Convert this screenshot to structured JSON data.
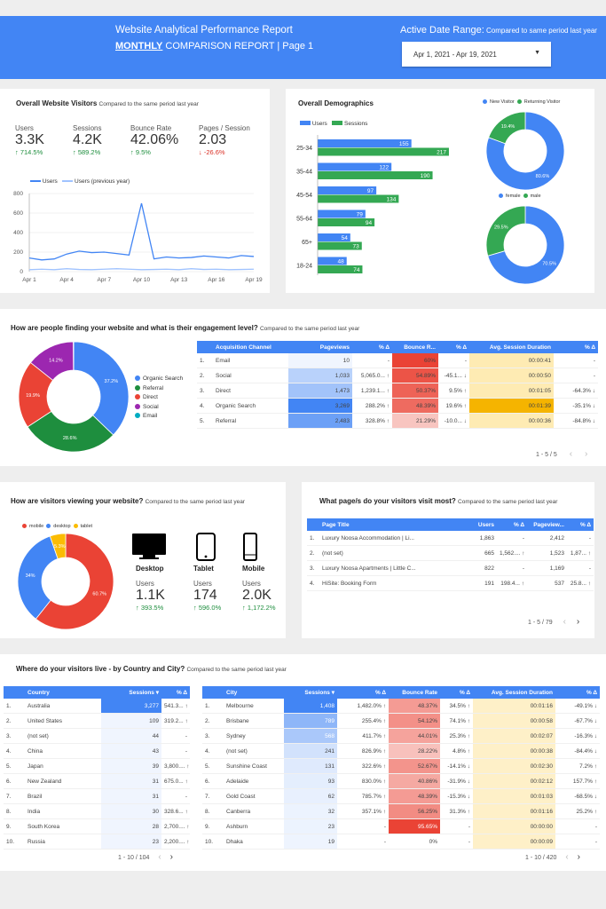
{
  "header": {
    "title": "Website Analytical Performance Report",
    "subtitle_bold": "MONTHLY",
    "subtitle_rest": " COMPARISON REPORT |  Page 1",
    "date_label": "Active Date Range:",
    "date_label_note": " Compared to same period last year",
    "date_value": "Apr 1, 2021 - Apr 19, 2021"
  },
  "visitors": {
    "title": "Overall Website Visitors",
    "note": "Compared to the same period last year",
    "metrics": [
      {
        "label": "Users",
        "value": "3.3K",
        "change": "714.5%",
        "dir": "up"
      },
      {
        "label": "Sessions",
        "value": "4.2K",
        "change": "589.2%",
        "dir": "up"
      },
      {
        "label": "Bounce Rate",
        "value": "42.06%",
        "change": "9.5%",
        "dir": "up"
      },
      {
        "label": "Pages / Session",
        "value": "2.03",
        "change": "-26.6%",
        "dir": "down"
      }
    ]
  },
  "demographics": {
    "title": "Overall Demographics"
  },
  "engagement": {
    "title": "How are people finding your website and what is their engagement level?",
    "note": "Compared to the same period last year",
    "headers": [
      "Acquisition Channel",
      "Pageviews",
      "% Δ",
      "Bounce R...",
      "% Δ",
      "Avg. Session Duration",
      "% Δ"
    ],
    "rows": [
      [
        "1.",
        "Email",
        "10",
        "-",
        "60%",
        "-",
        "00:00:41",
        "-"
      ],
      [
        "2.",
        "Social",
        "1,033",
        "5,065.0...",
        "54.89%",
        "-45.1...",
        "00:00:50",
        "-"
      ],
      [
        "3.",
        "Direct",
        "1,473",
        "1,239.1...",
        "50.37%",
        "9.5%",
        "00:01:05",
        "-64.3%"
      ],
      [
        "4.",
        "Organic Search",
        "3,269",
        "288.2%",
        "48.39%",
        "19.6%",
        "00:01:39",
        "-35.1%"
      ],
      [
        "5.",
        "Referral",
        "2,483",
        "328.8%",
        "21.29%",
        "-10.0...",
        "00:00:36",
        "-84.8%"
      ]
    ],
    "pager": "1 - 5 / 5"
  },
  "devices": {
    "title": "How are visitors viewing your website?",
    "note": "Compared to the same period last year",
    "items": [
      {
        "label": "Desktop",
        "metric": "Users",
        "value": "1.1K",
        "change": "393.5%"
      },
      {
        "label": "Tablet",
        "metric": "Users",
        "value": "174",
        "change": "596.0%"
      },
      {
        "label": "Mobile",
        "metric": "Users",
        "value": "2.0K",
        "change": "1,172.2%"
      }
    ]
  },
  "pages": {
    "title": "What page/s do your visitors visit most?",
    "note": "Compared to the same period last year",
    "headers": [
      "Page Title",
      "Users",
      "% Δ",
      "Pageview...",
      "% Δ"
    ],
    "rows": [
      [
        "1.",
        "Luxury Noosa Accommodation | Li...",
        "1,863",
        "-",
        "2,412",
        "-"
      ],
      [
        "2.",
        "(not set)",
        "665",
        "1,562....",
        "1,523",
        "1,87..."
      ],
      [
        "3.",
        "Luxury Noosa Apartments | Little C...",
        "822",
        "-",
        "1,169",
        "-"
      ],
      [
        "4.",
        "HiSite: Booking Form",
        "191",
        "198.4...",
        "537",
        "25.8..."
      ]
    ],
    "pager": "1 - 5 / 79"
  },
  "geo": {
    "title": "Where do your visitors live - by Country and City?",
    "note": "Compared to the same period last year",
    "country_headers": [
      "Country",
      "Sessions ▾",
      "% Δ"
    ],
    "country_rows": [
      [
        "1.",
        "Australia",
        "3,277",
        "541.3..."
      ],
      [
        "2.",
        "United States",
        "109",
        "319.2..."
      ],
      [
        "3.",
        "(not set)",
        "44",
        "-"
      ],
      [
        "4.",
        "China",
        "43",
        "-"
      ],
      [
        "5.",
        "Japan",
        "39",
        "3,800...."
      ],
      [
        "6.",
        "New Zealand",
        "31",
        "675.0..."
      ],
      [
        "7.",
        "Brazil",
        "31",
        "-"
      ],
      [
        "8.",
        "India",
        "30",
        "328.6..."
      ],
      [
        "9.",
        "South Korea",
        "28",
        "2,700...."
      ],
      [
        "10.",
        "Russia",
        "23",
        "2,200...."
      ]
    ],
    "country_pager": "1 - 10 / 104",
    "city_headers": [
      "City",
      "Sessions ▾",
      "% Δ",
      "Bounce Rate",
      "% Δ",
      "Avg. Session Duration",
      "% Δ"
    ],
    "city_rows": [
      [
        "1.",
        "Melbourne",
        "1,408",
        "1,482.0%",
        "48.37%",
        "34.5%",
        "00:01:16",
        "-49.1%"
      ],
      [
        "2.",
        "Brisbane",
        "789",
        "255.4%",
        "54.12%",
        "74.1%",
        "00:00:58",
        "-67.7%"
      ],
      [
        "3.",
        "Sydney",
        "568",
        "411.7%",
        "44.01%",
        "25.3%",
        "00:02:07",
        "-16.3%"
      ],
      [
        "4.",
        "(not set)",
        "241",
        "826.9%",
        "28.22%",
        "4.8%",
        "00:00:38",
        "-84.4%"
      ],
      [
        "5.",
        "Sunshine Coast",
        "131",
        "322.6%",
        "52.67%",
        "-14.1%",
        "00:02:30",
        "7.2%"
      ],
      [
        "6.",
        "Adelaide",
        "93",
        "830.0%",
        "40.86%",
        "-31.9%",
        "00:02:12",
        "157.7%"
      ],
      [
        "7.",
        "Gold Coast",
        "62",
        "785.7%",
        "48.39%",
        "-15.3%",
        "00:01:03",
        "-68.5%"
      ],
      [
        "8.",
        "Canberra",
        "32",
        "357.1%",
        "56.25%",
        "31.3%",
        "00:01:16",
        "25.2%"
      ],
      [
        "9.",
        "Ashburn",
        "23",
        "-",
        "95.65%",
        "-",
        "00:00:00",
        "-"
      ],
      [
        "10.",
        "Dhaka",
        "19",
        "-",
        "0%",
        "-",
        "00:00:09",
        "-"
      ]
    ],
    "city_pager": "1 - 10 / 420"
  },
  "chart_data": [
    {
      "type": "line",
      "x": [
        "Apr 1",
        "Apr 2",
        "Apr 3",
        "Apr 4",
        "Apr 5",
        "Apr 6",
        "Apr 7",
        "Apr 8",
        "Apr 9",
        "Apr 10",
        "Apr 11",
        "Apr 12",
        "Apr 13",
        "Apr 14",
        "Apr 15",
        "Apr 16",
        "Apr 17",
        "Apr 18",
        "Apr 19"
      ],
      "xticks": [
        "Apr 1",
        "Apr 4",
        "Apr 7",
        "Apr 10",
        "Apr 13",
        "Apr 16",
        "Apr 19"
      ],
      "series": [
        {
          "name": "Users",
          "color": "#4285f4",
          "values": [
            140,
            120,
            130,
            180,
            210,
            195,
            200,
            185,
            170,
            700,
            130,
            150,
            140,
            145,
            160,
            150,
            140,
            165,
            155
          ]
        },
        {
          "name": "Users (previous year)",
          "color": "#a0c3ff",
          "values": [
            20,
            25,
            20,
            30,
            22,
            20,
            25,
            30,
            25,
            20,
            22,
            25,
            20,
            30,
            22,
            25,
            20,
            22,
            25
          ]
        }
      ],
      "ylim": [
        0,
        800
      ],
      "yticks": [
        0,
        200,
        400,
        600,
        800
      ]
    },
    {
      "type": "bar",
      "categories": [
        "25-34",
        "35-44",
        "45-54",
        "55-64",
        "65+",
        "18-24"
      ],
      "series": [
        {
          "name": "Users",
          "color": "#4285f4",
          "values": [
            155,
            122,
            97,
            79,
            54,
            48
          ]
        },
        {
          "name": "Sessions",
          "color": "#34a853",
          "values": [
            217,
            190,
            134,
            94,
            73,
            74
          ]
        }
      ]
    },
    {
      "type": "pie",
      "labels": [
        "New Visitor",
        "Returning Visitor"
      ],
      "values": [
        80.6,
        19.4
      ],
      "colors": [
        "#4285f4",
        "#34a853"
      ]
    },
    {
      "type": "pie",
      "labels": [
        "female",
        "male"
      ],
      "values": [
        70.5,
        29.5
      ],
      "colors": [
        "#4285f4",
        "#34a853"
      ]
    },
    {
      "type": "pie",
      "labels": [
        "Organic Search",
        "Referral",
        "Direct",
        "Social",
        "Email"
      ],
      "values": [
        37.2,
        28.6,
        19.9,
        14.2,
        0.1
      ],
      "colors": [
        "#4285f4",
        "#1e8e3e",
        "#ea4335",
        "#9c27b0",
        "#00acc1"
      ]
    },
    {
      "type": "pie",
      "labels": [
        "mobile",
        "desktop",
        "tablet"
      ],
      "values": [
        60.7,
        34,
        5.3
      ],
      "colors": [
        "#ea4335",
        "#4285f4",
        "#fbbc04"
      ]
    }
  ]
}
